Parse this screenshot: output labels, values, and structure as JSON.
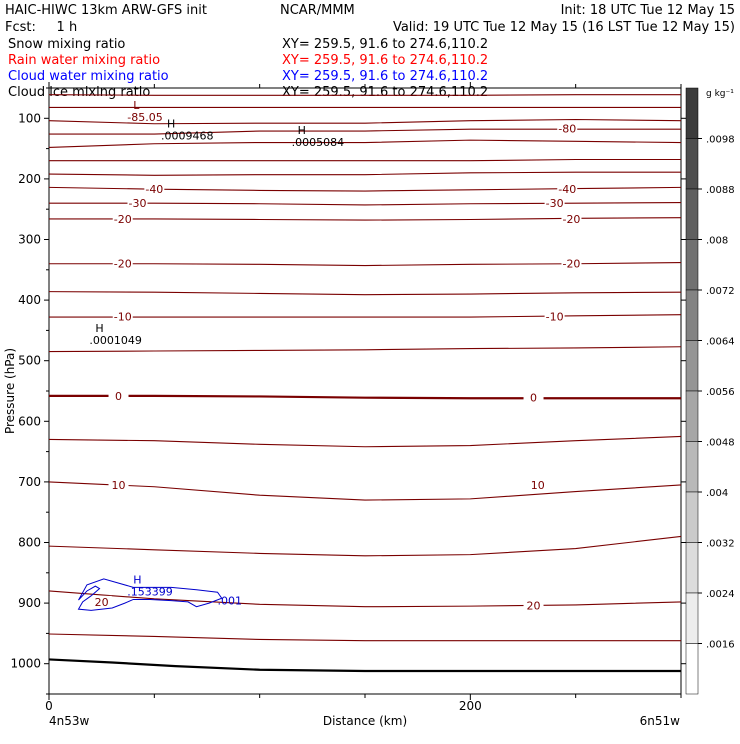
{
  "header": {
    "left_line1": "HAIC-HIWC 13km ARW-GFS init",
    "center_line1": "NCAR/MMM",
    "right_line1": "Init: 18 UTC Tue 12 May 15",
    "left_line2": "Fcst:     1 h",
    "right_line2": "Valid: 19 UTC Tue 12 May 15 (16 LST Tue 12 May 15)"
  },
  "fields": [
    {
      "name": "Snow mixing ratio",
      "xy": "XY= 259.5, 91.6 to 274.6,110.2",
      "color": "#000000"
    },
    {
      "name": "Rain water mixing ratio",
      "xy": "XY= 259.5, 91.6 to 274.6,110.2",
      "color": "#ff0000"
    },
    {
      "name": "Cloud water mixing ratio",
      "xy": "XY= 259.5, 91.6 to 274.6,110.2",
      "color": "#0000ff"
    },
    {
      "name": "Cloud ice mixing ratio",
      "xy": "XY= 259.5, 91.6 to 274.6,110.2",
      "color": "#000000"
    }
  ],
  "colors": {
    "temperature_contour": "#7a0000",
    "cloud_water_contour": "#0000cc",
    "text": "#000000"
  },
  "chart_data": {
    "type": "contour",
    "xlabel": "Distance (km)",
    "ylabel": "Pressure (hPa)",
    "xlim": [
      0,
      300
    ],
    "ylim": [
      1050,
      50
    ],
    "x_ticks": [
      0,
      200
    ],
    "x_end_labels": {
      "left": "4n53w",
      "right": "6n51w"
    },
    "y_ticks": [
      100,
      200,
      300,
      400,
      500,
      600,
      700,
      800,
      900,
      1000
    ],
    "temperature_contours": [
      {
        "x": [
          0,
          50,
          100,
          150,
          200,
          250,
          300
        ],
        "p": [
          61,
          62,
          62,
          62,
          62,
          61,
          61
        ]
      },
      {
        "x": [
          0,
          50,
          100,
          150,
          200,
          250,
          300
        ],
        "p": [
          82,
          82,
          82,
          82,
          82,
          82,
          82
        ]
      },
      {
        "x": [
          0,
          50,
          100,
          150,
          200,
          250,
          300
        ],
        "p": [
          104,
          109,
          108,
          108,
          104,
          102,
          104
        ]
      },
      {
        "x": [
          0,
          50,
          100,
          150,
          200,
          250,
          300
        ],
        "p": [
          126,
          126,
          121,
          121,
          118,
          118,
          118
        ],
        "label": "-80",
        "label_at": [
          [
            246,
            117
          ]
        ]
      },
      {
        "x": [
          0,
          50,
          100,
          150,
          200,
          250,
          300
        ],
        "p": [
          148,
          142,
          140,
          140,
          136,
          138,
          140
        ]
      },
      {
        "x": [
          0,
          50,
          100,
          150,
          200,
          250,
          300
        ],
        "p": [
          170,
          170,
          170,
          170,
          170,
          168,
          168
        ]
      },
      {
        "x": [
          0,
          50,
          100,
          150,
          200,
          250,
          300
        ],
        "p": [
          192,
          194,
          193,
          193,
          190,
          189,
          189
        ]
      },
      {
        "x": [
          0,
          50,
          100,
          150,
          200,
          250,
          300
        ],
        "p": [
          214,
          217,
          219,
          220,
          218,
          216,
          214
        ],
        "label": "-40",
        "label_at": [
          [
            50,
            217
          ],
          [
            246,
            217
          ]
        ]
      },
      {
        "x": [
          0,
          50,
          100,
          150,
          200,
          250,
          300
        ],
        "p": [
          240,
          240,
          241,
          243,
          241,
          240,
          239
        ],
        "label": "-30",
        "label_at": [
          [
            42,
            240
          ],
          [
            240,
            240
          ]
        ]
      },
      {
        "x": [
          0,
          50,
          100,
          150,
          200,
          250,
          300
        ],
        "p": [
          266,
          266,
          267,
          268,
          267,
          265,
          264
        ],
        "label": "-20",
        "label_at": [
          [
            35,
            266
          ],
          [
            248,
            266
          ]
        ]
      },
      {
        "x": [
          0,
          50,
          100,
          150,
          200,
          250,
          300
        ],
        "p": [
          340,
          340,
          341,
          343,
          341,
          340,
          338
        ],
        "label": "-20",
        "label_at": [
          [
            35,
            340
          ],
          [
            248,
            340
          ]
        ]
      },
      {
        "x": [
          0,
          50,
          100,
          150,
          200,
          250,
          300
        ],
        "p": [
          386,
          387,
          389,
          391,
          390,
          388,
          387
        ]
      },
      {
        "x": [
          0,
          50,
          100,
          150,
          200,
          250,
          300
        ],
        "p": [
          428,
          428,
          428,
          428,
          428,
          426,
          424
        ],
        "label": "-10",
        "label_at": [
          [
            35,
            427
          ],
          [
            240,
            427
          ]
        ]
      },
      {
        "x": [
          0,
          50,
          100,
          150,
          200,
          250,
          300
        ],
        "p": [
          485,
          484,
          483,
          482,
          480,
          479,
          477
        ]
      },
      {
        "x": [
          0,
          50,
          100,
          150,
          200,
          250,
          300
        ],
        "p": [
          558,
          558,
          559,
          561,
          562,
          562,
          562
        ],
        "label": "0",
        "label_at": [
          [
            33,
            558
          ],
          [
            230,
            561
          ]
        ],
        "bold": true
      },
      {
        "x": [
          0,
          50,
          100,
          150,
          200,
          250,
          300
        ],
        "p": [
          630,
          632,
          638,
          642,
          640,
          632,
          625
        ]
      },
      {
        "x": [
          0,
          50,
          100,
          150,
          200,
          250,
          300
        ],
        "p": [
          700,
          708,
          722,
          730,
          728,
          716,
          705
        ],
        "label": "10",
        "label_at": [
          [
            33,
            705
          ],
          [
            232,
            705
          ]
        ]
      },
      {
        "x": [
          0,
          50,
          100,
          150,
          200,
          250,
          300
        ],
        "p": [
          806,
          812,
          818,
          822,
          820,
          810,
          790
        ]
      },
      {
        "x": [
          0,
          50,
          100,
          150,
          200,
          250,
          300
        ],
        "p": [
          880,
          893,
          902,
          906,
          905,
          903,
          898
        ],
        "label": "20",
        "label_at": [
          [
            25,
            898
          ],
          [
            230,
            904
          ]
        ]
      },
      {
        "x": [
          0,
          50,
          100,
          150,
          200,
          250,
          300
        ],
        "p": [
          951,
          955,
          960,
          962,
          962,
          962,
          962
        ]
      },
      {
        "x": [
          0,
          30,
          60,
          100,
          150,
          200,
          250,
          300
        ],
        "p": [
          993,
          998,
          1004,
          1010,
          1012,
          1012,
          1012,
          1012
        ],
        "bold": true,
        "color": "black"
      }
    ],
    "cloud_water_contours": [
      {
        "label": "20",
        "label_at": [
          [
            25,
            898
          ]
        ],
        "label_color": "#0000cc",
        "x": [
          14,
          18,
          26,
          32,
          40,
          58,
          70,
          80,
          82,
          76,
          70,
          66,
          58,
          48,
          40,
          36,
          30,
          20,
          14,
          16,
          20,
          24,
          22,
          18,
          14
        ],
        "p": [
          895,
          870,
          860,
          866,
          874,
          874,
          878,
          882,
          892,
          900,
          906,
          898,
          896,
          894,
          894,
          900,
          908,
          912,
          910,
          898,
          888,
          876,
          872,
          880,
          895
        ]
      }
    ],
    "cloud_water_label": ".001",
    "cloud_water_label_at": [
      80,
      896
    ],
    "maxima": [
      {
        "symbol": "L",
        "value": "-85.05",
        "x": 40,
        "p": 85,
        "color": "#7a0000"
      },
      {
        "symbol": "H",
        "value": ".0009468",
        "x": 56,
        "p": 115,
        "color": "#000000"
      },
      {
        "symbol": "H",
        "value": ".0005084",
        "x": 118,
        "p": 126,
        "color": "#000000"
      },
      {
        "symbol": "H",
        "value": ".0001049",
        "x": 22,
        "p": 453,
        "color": "#000000"
      },
      {
        "symbol": "H",
        "value": ".153399",
        "x": 40,
        "p": 868,
        "color": "#0000cc"
      }
    ],
    "colorbar": {
      "unit": "g kg⁻¹",
      "labels": [
        ".0098",
        ".0088",
        ".008",
        ".0072",
        ".0064",
        ".0056",
        ".0048",
        ".004",
        ".0032",
        ".0024",
        ".0016"
      ]
    }
  }
}
